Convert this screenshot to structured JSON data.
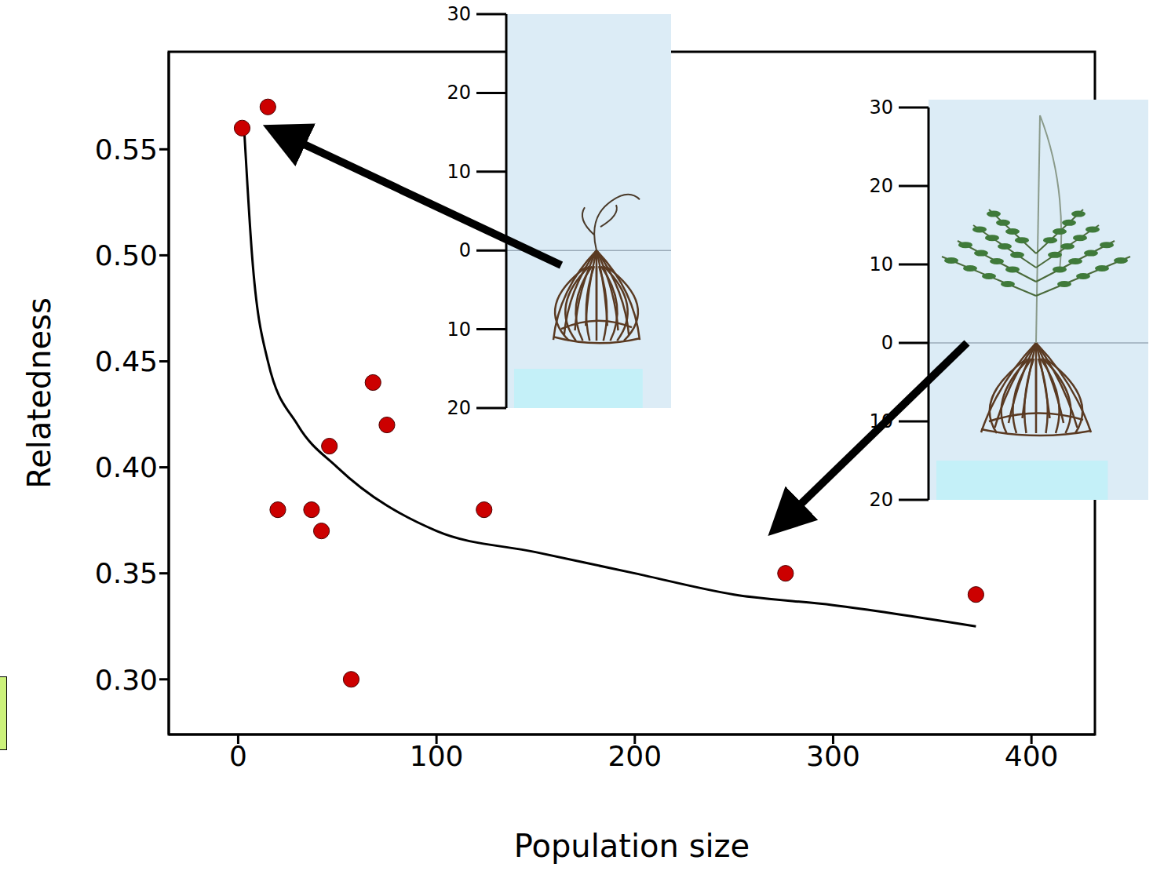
{
  "chart_data": {
    "type": "scatter",
    "xlabel": "Population size",
    "ylabel": "Relatedness",
    "xlim": [
      -35,
      432
    ],
    "ylim": [
      0.274,
      0.596
    ],
    "xticks": [
      0,
      100,
      200,
      300,
      400
    ],
    "yticks": [
      {
        "value": 0.3,
        "label": "0.30"
      },
      0.35,
      {
        "value": 0.4,
        "label": "0.40"
      },
      0.45,
      {
        "value": 0.5,
        "label": "0.50"
      },
      0.55
    ],
    "grid": false,
    "series": [
      {
        "type": "scatter",
        "color": "#cc0000",
        "marker": "circle",
        "x": [
          2,
          15,
          20,
          37,
          42,
          46,
          57,
          68,
          75,
          124,
          276,
          372
        ],
        "values": [
          0.56,
          0.57,
          0.38,
          0.38,
          0.37,
          0.41,
          0.3,
          0.44,
          0.42,
          0.38,
          0.35,
          0.34
        ]
      },
      {
        "type": "line",
        "color": "#000000",
        "line_style": "solid",
        "x": [
          3,
          7,
          15,
          30,
          50,
          100,
          150,
          200,
          250,
          300,
          372
        ],
        "values": [
          0.56,
          0.5,
          0.45,
          0.42,
          0.4,
          0.37,
          0.36,
          0.35,
          0.34,
          0.335,
          0.325
        ]
      }
    ]
  },
  "insets": [
    {
      "yticks": [
        30,
        20,
        10,
        0,
        {
          "value": -10,
          "label": "10"
        },
        {
          "value": -20,
          "label": "20"
        }
      ],
      "ylim": [
        -20,
        30
      ]
    },
    {
      "yticks": [
        30,
        20,
        10,
        0,
        {
          "value": -10,
          "label": "10"
        },
        {
          "value": -20,
          "label": "20"
        }
      ],
      "ylim": [
        -20,
        30
      ]
    }
  ]
}
